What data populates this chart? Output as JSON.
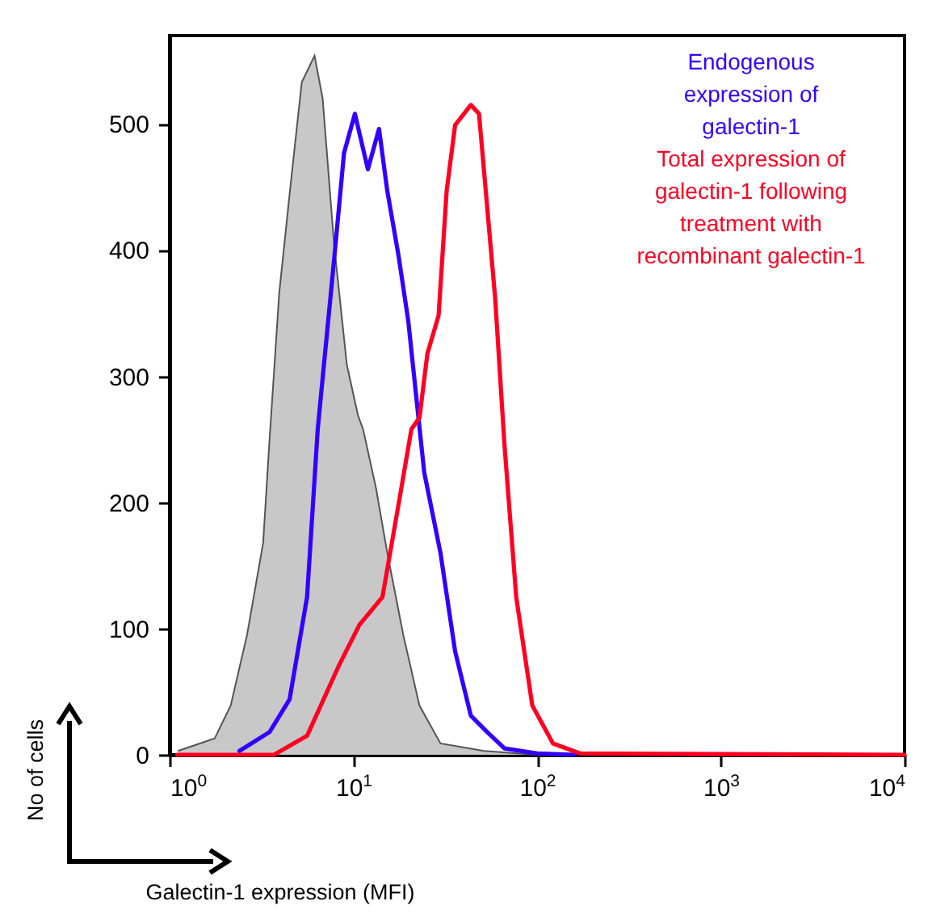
{
  "chart_data": {
    "type": "line",
    "xlabel": "Galectin-1 expression (MFI)",
    "ylabel": "No of cells",
    "log": "x",
    "xlim": [
      1,
      10000
    ],
    "xticks": [
      {
        "value": 1,
        "label": "10$^{0}$"
      },
      {
        "value": 10,
        "label": "10$^{1}$"
      },
      {
        "value": 100,
        "label": "10$^{2}$"
      },
      {
        "value": 1000,
        "label": "10$^{3}$"
      },
      {
        "value": 10000,
        "label": "10$^{4}$"
      }
    ],
    "ylim": [
      0,
      570
    ],
    "yticks": [
      0,
      100,
      200,
      300,
      400,
      500
    ],
    "grid": false,
    "legend": "top right",
    "series": [
      {
        "type": "area",
        "color": "#c8c8c8",
        "x": [
          1.11,
          1.76,
          2.15,
          2.64,
          3.23,
          3.5,
          3.95,
          4.55,
          5.24,
          6.15,
          6.81,
          7.85,
          9.22,
          10.6,
          11.3,
          13.3,
          15.3,
          18.7,
          22.9,
          29.8,
          51.4,
          100
        ],
        "values": [
          3,
          13,
          39,
          95,
          168,
          250,
          366,
          451,
          533,
          554,
          520,
          405,
          309,
          269,
          258,
          211,
          160,
          95,
          39,
          9,
          3,
          0
        ]
      },
      {
        "name": "Endogenous expression of galectin-1",
        "color": "#3300ff",
        "x": [
          2.4,
          3.5,
          4.5,
          5.6,
          6.4,
          7.9,
          8.9,
          10.2,
          12.0,
          13.8,
          15.3,
          17.6,
          19.9,
          24.3,
          29.8,
          35.8,
          43.6,
          53.5,
          66.5,
          100,
          160
        ],
        "values": [
          3,
          18,
          44,
          125,
          258,
          396,
          477,
          508,
          464,
          496,
          447,
          396,
          344,
          224,
          160,
          82,
          31,
          18,
          5,
          1,
          0
        ]
      },
      {
        "name": "Total expression of galectin-1 following treatment with recombinant galectin-1",
        "color": "#ff0022",
        "x": [
          1.1,
          3.7,
          5.6,
          8.3,
          10.8,
          14.4,
          17.6,
          20.7,
          22.9,
          25.3,
          29.1,
          32.2,
          35.8,
          43.6,
          48.3,
          59.2,
          66.5,
          77.0,
          94.2,
          122,
          172,
          10000
        ],
        "values": [
          0,
          0,
          15,
          70,
          103,
          125,
          198,
          258,
          267,
          318,
          348,
          447,
          499,
          515,
          508,
          361,
          245,
          125,
          39,
          9,
          1,
          0
        ]
      }
    ]
  }
}
